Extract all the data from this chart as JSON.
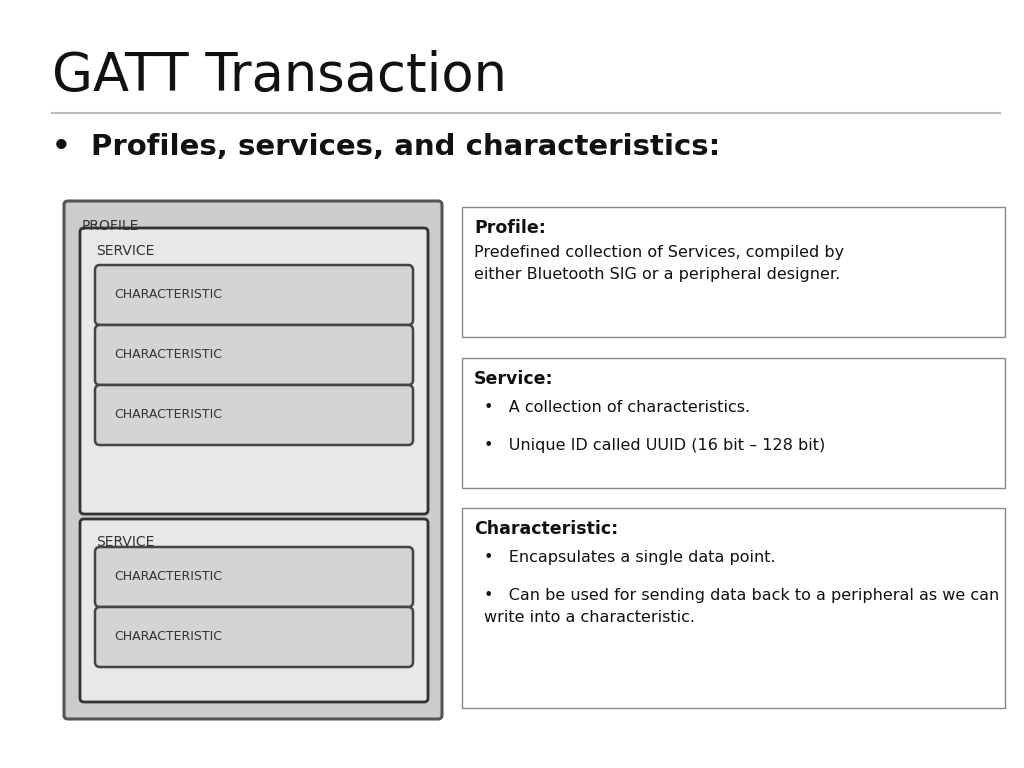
{
  "title": "GATT Transaction",
  "subtitle": "•  Profiles, services, and characteristics:",
  "background_color": "#ffffff",
  "title_fontsize": 38,
  "subtitle_fontsize": 21,
  "diagram": {
    "profile_label": "PROFILE",
    "service_label": "SERVICE",
    "characteristic_label": "CHARACTERISTIC",
    "profile_bg": "#cccccc",
    "service1_bg": "#e8e8e8",
    "service2_bg": "#e8e8e8",
    "char_bg": "#d4d4d4",
    "profile_border": "#555555",
    "service_border": "#333333",
    "char_border": "#444444"
  },
  "info_boxes": [
    {
      "title": "Profile:",
      "body": "Predefined collection of Services, compiled by\neither Bluetooth SIG or a peripheral designer.",
      "has_bullets": false
    },
    {
      "title": "Service:",
      "bullets": [
        "A collection of characteristics.",
        "Unique ID called UUID (16 bit – 128 bit)"
      ],
      "has_bullets": true
    },
    {
      "title": "Characteristic:",
      "bullets": [
        "Encapsulates a single data point.",
        "Can be used for sending data back to a peripheral as we can write into a characteristic."
      ],
      "has_bullets": true
    }
  ]
}
